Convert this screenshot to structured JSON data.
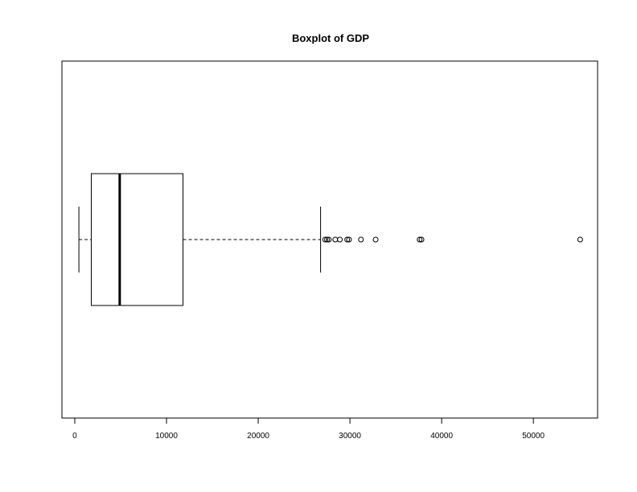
{
  "chart_data": {
    "type": "boxplot",
    "orientation": "horizontal",
    "title": "Boxplot of GDP",
    "xlabel": "",
    "ylabel": "",
    "xlim": [
      -1400,
      57000
    ],
    "x_ticks": [
      0,
      10000,
      20000,
      30000,
      40000,
      50000
    ],
    "x_tick_labels": [
      "0",
      "10000",
      "20000",
      "30000",
      "40000",
      "50000"
    ],
    "grid": false,
    "box": {
      "whisker_low": 450,
      "q1": 1800,
      "median": 4900,
      "q3": 11800,
      "whisker_high": 26800
    },
    "outliers": [
      27300,
      27500,
      27700,
      28400,
      28900,
      29700,
      29900,
      31200,
      32800,
      37600,
      37800,
      55100
    ]
  }
}
